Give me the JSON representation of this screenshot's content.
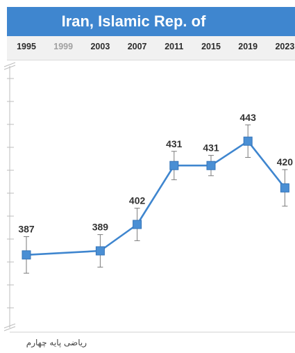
{
  "chart_data": {
    "type": "line",
    "title": "Iran, Islamic Rep. of",
    "x": [
      "1995",
      "1999",
      "2003",
      "2007",
      "2011",
      "2015",
      "2019",
      "2023"
    ],
    "x_dimmed": [
      "1999"
    ],
    "series": [
      {
        "points": [
          {
            "x": "1995",
            "y": 387,
            "err": 9
          },
          {
            "x": "2003",
            "y": 389,
            "err": 8
          },
          {
            "x": "2007",
            "y": 402,
            "err": 8
          },
          {
            "x": "2011",
            "y": 431,
            "err": 7
          },
          {
            "x": "2015",
            "y": 431,
            "err": 5
          },
          {
            "x": "2019",
            "y": 443,
            "err": 8
          },
          {
            "x": "2023",
            "y": 420,
            "err": 9
          }
        ]
      }
    ],
    "ylim": [
      350,
      480
    ],
    "grid": false,
    "colors": {
      "line": "#3f86cf",
      "marker": "#4a8fd4",
      "error_bar": "#7a7a7a",
      "title_bg": "#3f86cf"
    }
  },
  "caption": "ریاضی پایه چهارم"
}
